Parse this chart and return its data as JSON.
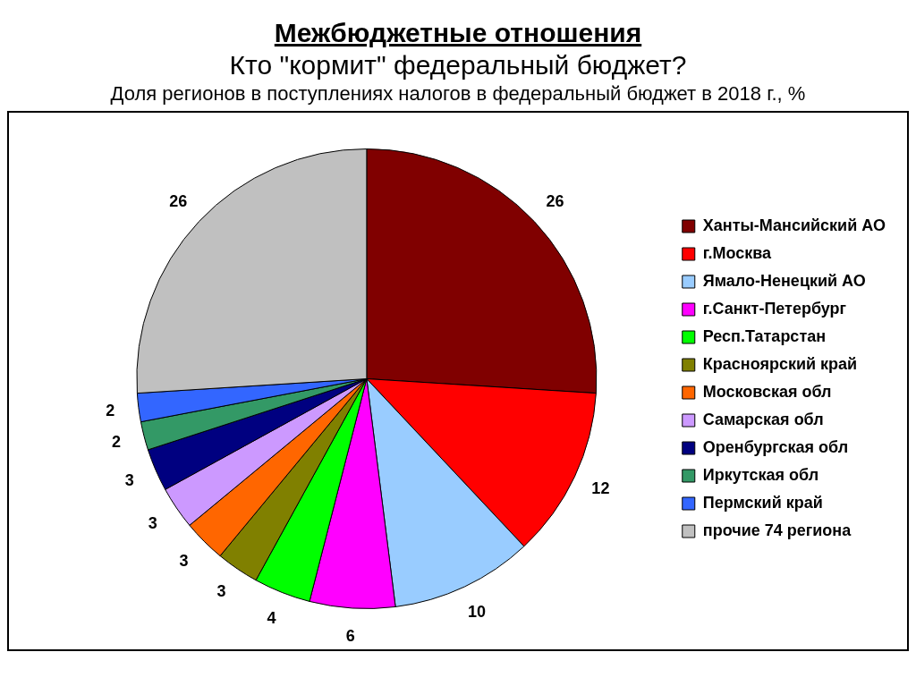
{
  "chart_data": {
    "type": "pie",
    "title": "Межбюджетные отношения",
    "subtitle": "Кто \"кормит\" федеральный бюджет?",
    "annotations": [
      "Доля регионов в поступлениях налогов в федеральный бюджет в 2018 г.,  %"
    ],
    "categories": [
      "Ханты-Мансийский АО",
      "г.Москва",
      "Ямало-Ненецкий АО",
      "г.Санкт-Петербург",
      "Респ.Татарстан",
      "Красноярский край",
      "Московская обл",
      "Самарская обл",
      "Оренбургская обл",
      "Иркутская обл",
      "Пермский край",
      "прочие 74 региона"
    ],
    "values": [
      26,
      12,
      10,
      6,
      4,
      3,
      3,
      3,
      3,
      2,
      2,
      26
    ],
    "colors": [
      "#800000",
      "#ff0000",
      "#99ccff",
      "#ff00ff",
      "#00ff00",
      "#808000",
      "#ff6600",
      "#cc99ff",
      "#000080",
      "#339966",
      "#3366ff",
      "#c0c0c0"
    ],
    "data_labels": true,
    "legend": "right"
  }
}
